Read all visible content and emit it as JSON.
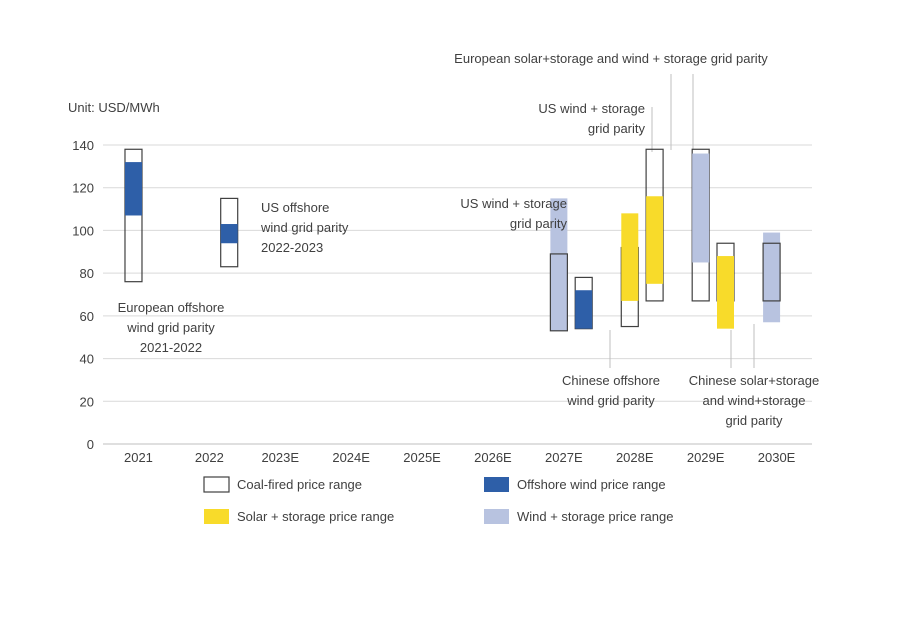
{
  "chart_data": {
    "type": "range-bar",
    "unit_label": "Unit: USD/MWh",
    "ylim": [
      0,
      140
    ],
    "y_ticks": [
      0,
      20,
      40,
      60,
      80,
      100,
      120,
      140
    ],
    "categories": [
      "2021",
      "2022",
      "2023E",
      "2024E",
      "2025E",
      "2026E",
      "2027E",
      "2028E",
      "2029E",
      "2030E"
    ],
    "grid": true,
    "series": [
      {
        "key": "coal",
        "name": "Coal-fired price range",
        "color": "#ffffff",
        "stroke": "#404040"
      },
      {
        "key": "offshore",
        "name": "Offshore wind price range",
        "color": "#2e5fa8"
      },
      {
        "key": "solar",
        "name": "Solar + storage price range",
        "color": "#f8db2a"
      },
      {
        "key": "wind",
        "name": "Wind + storage price range",
        "color": "#b8c3e0"
      }
    ],
    "ranges": [
      {
        "series": "coal",
        "category": "2021",
        "low": 76,
        "high": 138
      },
      {
        "series": "offshore",
        "category": "2021",
        "low": 107,
        "high": 132
      },
      {
        "series": "coal",
        "category": "2022",
        "low": 83,
        "high": 115
      },
      {
        "series": "offshore",
        "category": "2022",
        "low": 94,
        "high": 103
      },
      {
        "series": "wind",
        "category": "2027E",
        "low": 53,
        "high": 115
      },
      {
        "series": "coal",
        "category": "2027E",
        "low": 53,
        "high": 89
      },
      {
        "series": "coal",
        "category": "2027E",
        "low": 54,
        "high": 78,
        "slot": "right"
      },
      {
        "series": "offshore",
        "category": "2027E",
        "low": 54,
        "high": 72,
        "slot": "right"
      },
      {
        "series": "coal",
        "category": "2028E",
        "low": 55,
        "high": 92
      },
      {
        "series": "solar",
        "category": "2028E",
        "low": 67,
        "high": 108
      },
      {
        "series": "coal",
        "category": "2028E",
        "low": 67,
        "high": 138,
        "slot": "right"
      },
      {
        "series": "solar",
        "category": "2028E",
        "low": 75,
        "high": 116,
        "slot": "right"
      },
      {
        "series": "coal",
        "category": "2029E",
        "low": 67,
        "high": 138
      },
      {
        "series": "wind",
        "category": "2029E",
        "low": 85,
        "high": 136
      },
      {
        "series": "coal",
        "category": "2029E",
        "low": 67,
        "high": 94,
        "slot": "right"
      },
      {
        "series": "solar",
        "category": "2029E",
        "low": 54,
        "high": 88,
        "slot": "right"
      },
      {
        "series": "wind",
        "category": "2030E",
        "low": 57,
        "high": 99
      },
      {
        "series": "coal",
        "category": "2030E",
        "low": 67,
        "high": 94
      }
    ],
    "annotations": [
      {
        "key": "eu_offshore",
        "lines": [
          "European offshore",
          "wind grid parity",
          "2021-2022"
        ]
      },
      {
        "key": "us_offshore",
        "lines": [
          "US offshore",
          "wind grid parity",
          "2022-2023"
        ]
      },
      {
        "key": "us_wind_2027",
        "lines": [
          "US wind + storage",
          "grid parity"
        ]
      },
      {
        "key": "us_wind_2028",
        "lines": [
          "US wind + storage",
          "grid parity"
        ]
      },
      {
        "key": "eu_solar_wind",
        "lines": [
          "European solar+storage and wind + storage grid parity"
        ]
      },
      {
        "key": "cn_offshore",
        "lines": [
          "Chinese offshore",
          "wind grid parity"
        ]
      },
      {
        "key": "cn_solar_wind",
        "lines": [
          "Chinese solar+storage",
          "and wind+storage",
          "grid parity"
        ]
      }
    ]
  }
}
